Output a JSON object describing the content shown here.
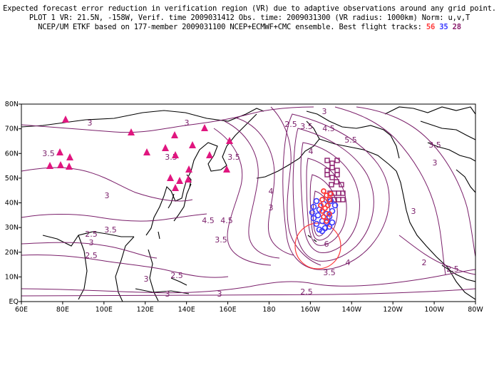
{
  "header": {
    "line1": "Expected forecast error reduction in verification region (VR) due to adaptive observations around any grid point.",
    "line2": "PLOT 1 VR: 21.5N, -158W, Verif. time 2009031412 Obs. time: 2009031300 (VR radius: 1000km) Norm: u,v,T",
    "line3": "NCEP/UM ETKF based on 177-member 2009031100 NCEP+ECMWF+CMC ensemble. Best flight tracks:",
    "track_counts": [
      "56",
      "35",
      "28"
    ]
  },
  "map": {
    "x_ticks": [
      "60E",
      "80E",
      "100E",
      "120E",
      "140E",
      "160E",
      "180",
      "160W",
      "140W",
      "120W",
      "100W",
      "80W"
    ],
    "y_ticks": [
      "EQ",
      "10N",
      "20N",
      "30N",
      "40N",
      "50N",
      "60N",
      "70N",
      "80N"
    ],
    "contour_labels": [
      "3.5",
      "3",
      "3.5",
      "3",
      "3",
      "3.5",
      "2.5",
      "2.5",
      "2.5",
      "3",
      "3",
      "3",
      "2.5",
      "3",
      "3.5",
      "3",
      "3.5",
      "4.5",
      "3.5",
      "4",
      "3",
      "4.5",
      "5.5",
      "4",
      "3",
      "3.5",
      "3",
      "2",
      "2.5",
      "2.5",
      "4",
      "4.5",
      "3.5",
      "6"
    ],
    "colors": {
      "contour": "#7a1f6a",
      "triangle": "#e0167f",
      "track_red": "#ff3a3a",
      "track_blue": "#3a3aff",
      "track_purple": "#8b1e6e",
      "vr_circle": "#ff3a3a"
    },
    "vr_center": {
      "lat": 21.5,
      "lon": -158
    }
  }
}
